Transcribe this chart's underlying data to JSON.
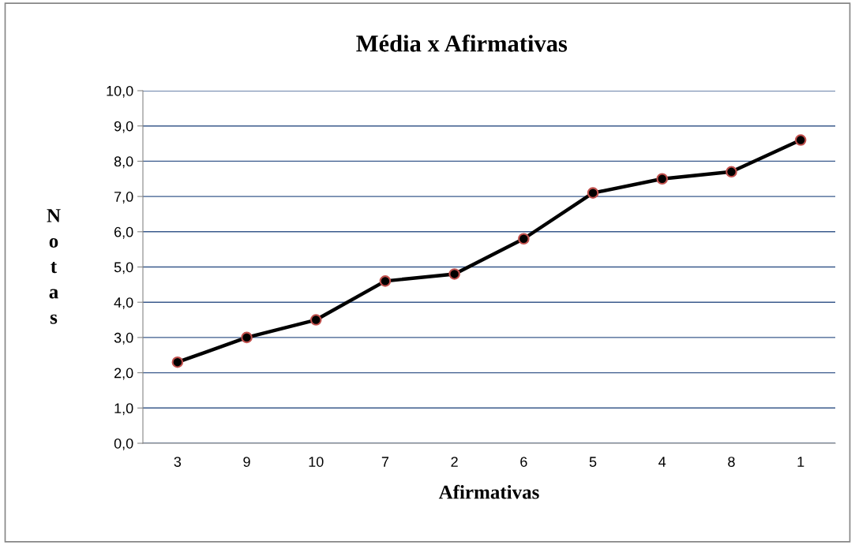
{
  "chart_data": {
    "type": "line",
    "title": "Média x Afirmativas",
    "xlabel": "Afirmativas",
    "ylabel": "Notas",
    "categories": [
      "3",
      "9",
      "10",
      "7",
      "2",
      "6",
      "5",
      "4",
      "8",
      "1"
    ],
    "series": [
      {
        "color": "#000000",
        "values": [
          2.3,
          3.0,
          3.5,
          4.6,
          4.8,
          5.8,
          7.1,
          7.5,
          7.7,
          8.6
        ]
      }
    ],
    "ylim": [
      0,
      10
    ],
    "yticks": [
      {
        "value": 0,
        "label": "0,0"
      },
      {
        "value": 1,
        "label": "1,0"
      },
      {
        "value": 2,
        "label": "2,0"
      },
      {
        "value": 3,
        "label": "3,0"
      },
      {
        "value": 4,
        "label": "4,0"
      },
      {
        "value": 5,
        "label": "5,0"
      },
      {
        "value": 6,
        "label": "6,0"
      },
      {
        "value": 7,
        "label": "7,0"
      },
      {
        "value": 8,
        "label": "8,0"
      },
      {
        "value": 9,
        "label": "9,0"
      },
      {
        "value": 10,
        "label": "10,0"
      }
    ],
    "grid": "y",
    "marker": "circle",
    "line_style": "solid",
    "legend": false
  }
}
